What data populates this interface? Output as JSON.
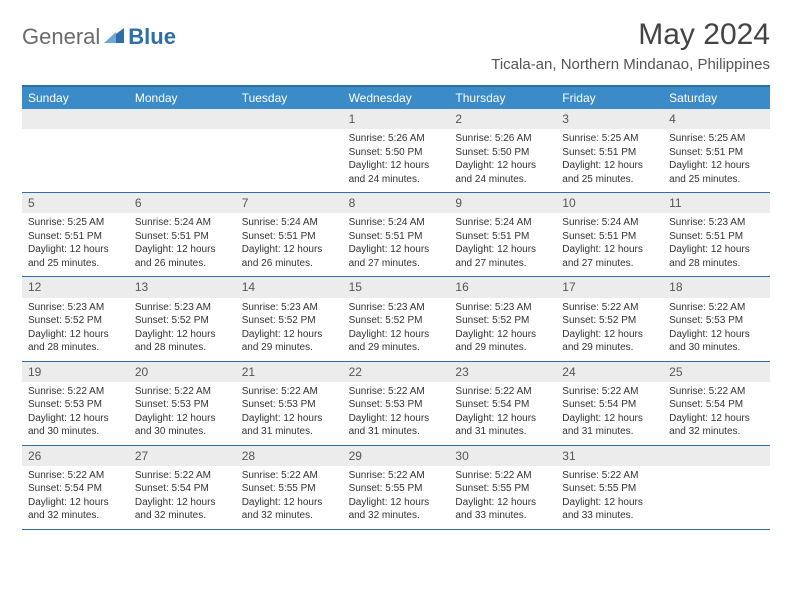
{
  "logo": {
    "text1": "General",
    "text2": "Blue"
  },
  "title": "May 2024",
  "location": "Ticala-an, Northern Mindanao, Philippines",
  "colors": {
    "headerBg": "#3b8bc9",
    "borderBlue": "#2f6fa8",
    "dayBarBg": "#ececec",
    "text": "#333333"
  },
  "dayNames": [
    "Sunday",
    "Monday",
    "Tuesday",
    "Wednesday",
    "Thursday",
    "Friday",
    "Saturday"
  ],
  "weeks": [
    [
      {
        "empty": true
      },
      {
        "empty": true
      },
      {
        "empty": true
      },
      {
        "num": "1",
        "sunrise": "Sunrise: 5:26 AM",
        "sunset": "Sunset: 5:50 PM",
        "daylight": "Daylight: 12 hours and 24 minutes."
      },
      {
        "num": "2",
        "sunrise": "Sunrise: 5:26 AM",
        "sunset": "Sunset: 5:50 PM",
        "daylight": "Daylight: 12 hours and 24 minutes."
      },
      {
        "num": "3",
        "sunrise": "Sunrise: 5:25 AM",
        "sunset": "Sunset: 5:51 PM",
        "daylight": "Daylight: 12 hours and 25 minutes."
      },
      {
        "num": "4",
        "sunrise": "Sunrise: 5:25 AM",
        "sunset": "Sunset: 5:51 PM",
        "daylight": "Daylight: 12 hours and 25 minutes."
      }
    ],
    [
      {
        "num": "5",
        "sunrise": "Sunrise: 5:25 AM",
        "sunset": "Sunset: 5:51 PM",
        "daylight": "Daylight: 12 hours and 25 minutes."
      },
      {
        "num": "6",
        "sunrise": "Sunrise: 5:24 AM",
        "sunset": "Sunset: 5:51 PM",
        "daylight": "Daylight: 12 hours and 26 minutes."
      },
      {
        "num": "7",
        "sunrise": "Sunrise: 5:24 AM",
        "sunset": "Sunset: 5:51 PM",
        "daylight": "Daylight: 12 hours and 26 minutes."
      },
      {
        "num": "8",
        "sunrise": "Sunrise: 5:24 AM",
        "sunset": "Sunset: 5:51 PM",
        "daylight": "Daylight: 12 hours and 27 minutes."
      },
      {
        "num": "9",
        "sunrise": "Sunrise: 5:24 AM",
        "sunset": "Sunset: 5:51 PM",
        "daylight": "Daylight: 12 hours and 27 minutes."
      },
      {
        "num": "10",
        "sunrise": "Sunrise: 5:24 AM",
        "sunset": "Sunset: 5:51 PM",
        "daylight": "Daylight: 12 hours and 27 minutes."
      },
      {
        "num": "11",
        "sunrise": "Sunrise: 5:23 AM",
        "sunset": "Sunset: 5:51 PM",
        "daylight": "Daylight: 12 hours and 28 minutes."
      }
    ],
    [
      {
        "num": "12",
        "sunrise": "Sunrise: 5:23 AM",
        "sunset": "Sunset: 5:52 PM",
        "daylight": "Daylight: 12 hours and 28 minutes."
      },
      {
        "num": "13",
        "sunrise": "Sunrise: 5:23 AM",
        "sunset": "Sunset: 5:52 PM",
        "daylight": "Daylight: 12 hours and 28 minutes."
      },
      {
        "num": "14",
        "sunrise": "Sunrise: 5:23 AM",
        "sunset": "Sunset: 5:52 PM",
        "daylight": "Daylight: 12 hours and 29 minutes."
      },
      {
        "num": "15",
        "sunrise": "Sunrise: 5:23 AM",
        "sunset": "Sunset: 5:52 PM",
        "daylight": "Daylight: 12 hours and 29 minutes."
      },
      {
        "num": "16",
        "sunrise": "Sunrise: 5:23 AM",
        "sunset": "Sunset: 5:52 PM",
        "daylight": "Daylight: 12 hours and 29 minutes."
      },
      {
        "num": "17",
        "sunrise": "Sunrise: 5:22 AM",
        "sunset": "Sunset: 5:52 PM",
        "daylight": "Daylight: 12 hours and 29 minutes."
      },
      {
        "num": "18",
        "sunrise": "Sunrise: 5:22 AM",
        "sunset": "Sunset: 5:53 PM",
        "daylight": "Daylight: 12 hours and 30 minutes."
      }
    ],
    [
      {
        "num": "19",
        "sunrise": "Sunrise: 5:22 AM",
        "sunset": "Sunset: 5:53 PM",
        "daylight": "Daylight: 12 hours and 30 minutes."
      },
      {
        "num": "20",
        "sunrise": "Sunrise: 5:22 AM",
        "sunset": "Sunset: 5:53 PM",
        "daylight": "Daylight: 12 hours and 30 minutes."
      },
      {
        "num": "21",
        "sunrise": "Sunrise: 5:22 AM",
        "sunset": "Sunset: 5:53 PM",
        "daylight": "Daylight: 12 hours and 31 minutes."
      },
      {
        "num": "22",
        "sunrise": "Sunrise: 5:22 AM",
        "sunset": "Sunset: 5:53 PM",
        "daylight": "Daylight: 12 hours and 31 minutes."
      },
      {
        "num": "23",
        "sunrise": "Sunrise: 5:22 AM",
        "sunset": "Sunset: 5:54 PM",
        "daylight": "Daylight: 12 hours and 31 minutes."
      },
      {
        "num": "24",
        "sunrise": "Sunrise: 5:22 AM",
        "sunset": "Sunset: 5:54 PM",
        "daylight": "Daylight: 12 hours and 31 minutes."
      },
      {
        "num": "25",
        "sunrise": "Sunrise: 5:22 AM",
        "sunset": "Sunset: 5:54 PM",
        "daylight": "Daylight: 12 hours and 32 minutes."
      }
    ],
    [
      {
        "num": "26",
        "sunrise": "Sunrise: 5:22 AM",
        "sunset": "Sunset: 5:54 PM",
        "daylight": "Daylight: 12 hours and 32 minutes."
      },
      {
        "num": "27",
        "sunrise": "Sunrise: 5:22 AM",
        "sunset": "Sunset: 5:54 PM",
        "daylight": "Daylight: 12 hours and 32 minutes."
      },
      {
        "num": "28",
        "sunrise": "Sunrise: 5:22 AM",
        "sunset": "Sunset: 5:55 PM",
        "daylight": "Daylight: 12 hours and 32 minutes."
      },
      {
        "num": "29",
        "sunrise": "Sunrise: 5:22 AM",
        "sunset": "Sunset: 5:55 PM",
        "daylight": "Daylight: 12 hours and 32 minutes."
      },
      {
        "num": "30",
        "sunrise": "Sunrise: 5:22 AM",
        "sunset": "Sunset: 5:55 PM",
        "daylight": "Daylight: 12 hours and 33 minutes."
      },
      {
        "num": "31",
        "sunrise": "Sunrise: 5:22 AM",
        "sunset": "Sunset: 5:55 PM",
        "daylight": "Daylight: 12 hours and 33 minutes."
      },
      {
        "empty": true
      }
    ]
  ]
}
